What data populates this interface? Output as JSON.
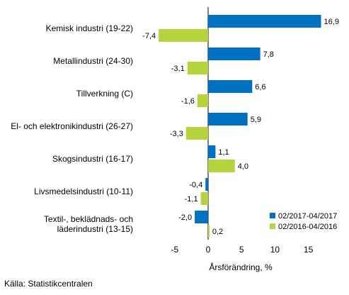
{
  "chart_data": {
    "type": "bar",
    "orientation": "horizontal",
    "categories": [
      [
        "Kemisk industri (19-22)"
      ],
      [
        "Metallindustri (24-30)"
      ],
      [
        "Tillverkning (C)"
      ],
      [
        "El- och elektronikindustri (26-27)"
      ],
      [
        "Skogsindustri (16-17)"
      ],
      [
        "Livsmedelsindustri (10-11)"
      ],
      [
        "Textil-, beklädnads- och",
        "läderindustri (13-15)"
      ]
    ],
    "series": [
      {
        "name": "02/2017-04/2017",
        "color": "#0070c0",
        "values": [
          16.9,
          7.8,
          6.6,
          5.9,
          1.1,
          -0.4,
          -2.0
        ],
        "labels": [
          "16,9",
          "7,8",
          "6,6",
          "5,9",
          "1,1",
          "-0,4",
          "-2,0"
        ]
      },
      {
        "name": "02/2016-04/2016",
        "color": "#b5d33d",
        "values": [
          -7.4,
          -3.1,
          -1.6,
          -3.3,
          4.0,
          -1.1,
          0.2
        ],
        "labels": [
          "-7,4",
          "-3,1",
          "-1,6",
          "-3,3",
          "4,0",
          "-1,1",
          "0,2"
        ]
      }
    ],
    "xlabel": "Årsförändring, %",
    "xticks": [
      -5,
      0,
      5,
      10,
      15
    ],
    "xlim": [
      -10,
      19.5
    ],
    "grid": false,
    "legend_position": "bottom-right"
  },
  "source": "Källa: Statistikcentralen"
}
